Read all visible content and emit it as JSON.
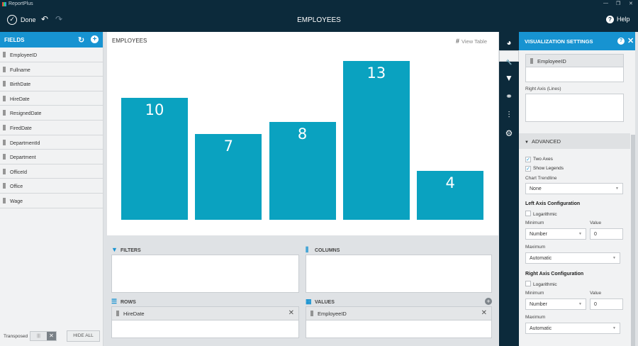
{
  "app": {
    "title": "ReportPlus",
    "window_controls": [
      "—",
      "❐",
      "✕"
    ]
  },
  "topbar": {
    "done_label": "Done",
    "title": "EMPLOYEES",
    "help_label": "Help"
  },
  "fields_panel": {
    "title": "FIELDS",
    "items": [
      "EmployeeID",
      "Fullname",
      "BirthDate",
      "HireDate",
      "ResignedDate",
      "FiredDate",
      "DepartmentId",
      "Department",
      "OfficeId",
      "Office",
      "Wage"
    ],
    "transposed_label": "Transposed",
    "hide_all_label": "HIDE ALL"
  },
  "canvas": {
    "title": "EMPLOYEES",
    "view_table_label": "View Table"
  },
  "chart_data": {
    "type": "bar",
    "categories": [
      "",
      "",
      "",
      "",
      ""
    ],
    "values": [
      10,
      7,
      8,
      13,
      4
    ],
    "title": "EMPLOYEES",
    "xlabel": "",
    "ylabel": "",
    "ylim": [
      0,
      14.5
    ],
    "color": "#0aa2c0"
  },
  "sections": {
    "filters_label": "FILTERS",
    "columns_label": "COLUMNS",
    "rows_label": "ROWS",
    "values_label": "VALUES",
    "rows_item": "HireDate",
    "values_item": "EmployeeID"
  },
  "viz_settings": {
    "title": "VISUALIZATION SETTINGS",
    "top_field": "EmployeeID",
    "right_axis_label": "Right Axis (Lines)",
    "advanced_label": "ADVANCED",
    "two_axes_label": "Two Axes",
    "show_legends_label": "Show Legends",
    "two_axes_checked": true,
    "show_legends_checked": true,
    "trendline_label": "Chart Trendline",
    "trendline_value": "None",
    "left_axis": {
      "title": "Left Axis Configuration",
      "logarithmic_label": "Logarithmic",
      "minimum_label": "Minimum",
      "value_label": "Value",
      "minimum_value": "Number",
      "value": "0",
      "maximum_label": "Maximum",
      "maximum_value": "Automatic"
    },
    "right_axis": {
      "title": "Right Axis Configuration",
      "logarithmic_label": "Logarithmic",
      "minimum_label": "Minimum",
      "value_label": "Value",
      "minimum_value": "Number",
      "value": "0",
      "maximum_label": "Maximum",
      "maximum_value": "Automatic"
    }
  },
  "colors": {
    "accent": "#1793d1",
    "dark": "#0c2a3b",
    "bar": "#0aa2c0"
  }
}
